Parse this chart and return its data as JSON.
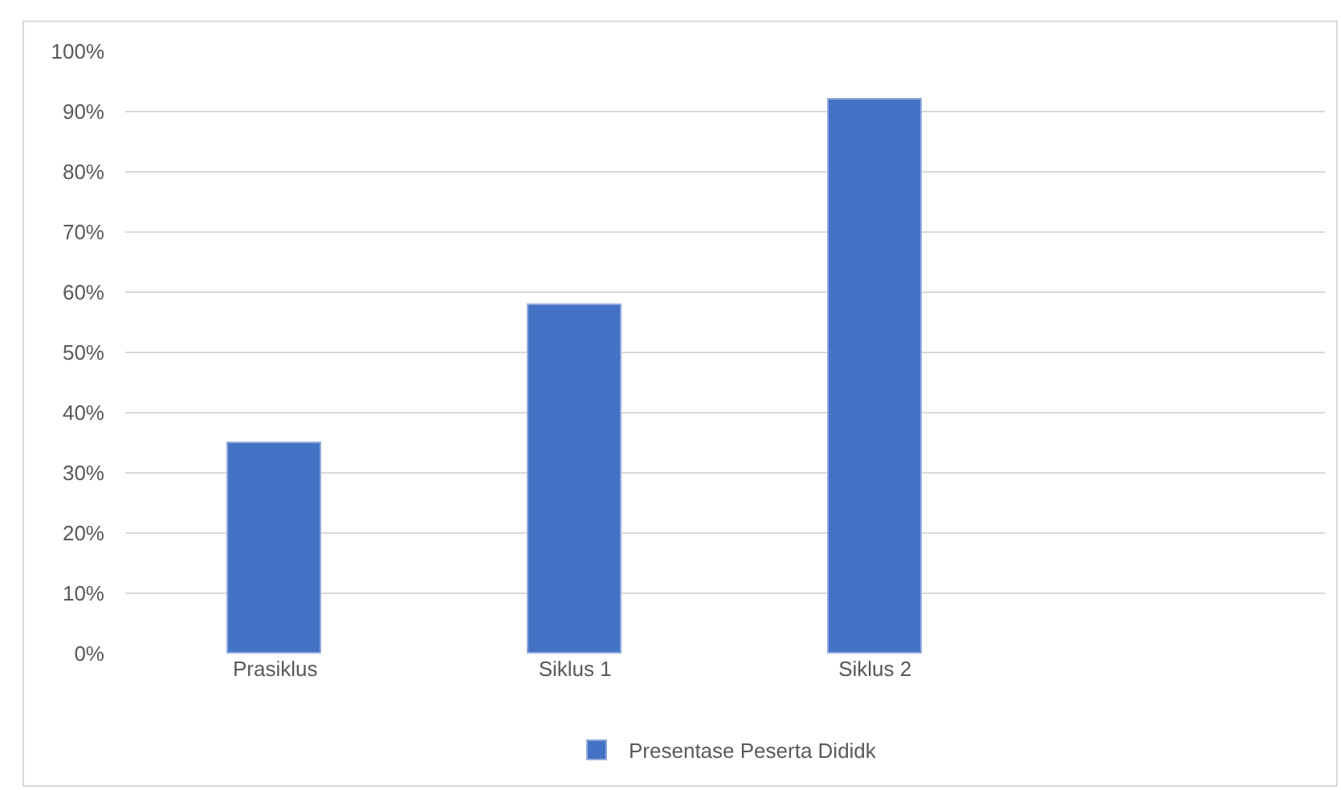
{
  "chart_data": {
    "type": "bar",
    "categories": [
      "Prasiklus",
      "Siklus 1",
      "Siklus 2",
      null
    ],
    "series": [
      {
        "name": "Presentase Peserta Dididk",
        "color": "#4472c4",
        "values": [
          35,
          58,
          92,
          null
        ]
      }
    ],
    "ylim": [
      0,
      100
    ],
    "yticks": [
      {
        "value": 0,
        "label": "0%"
      },
      {
        "value": 10,
        "label": "10%"
      },
      {
        "value": 20,
        "label": "20%"
      },
      {
        "value": 30,
        "label": "30%"
      },
      {
        "value": 40,
        "label": "40%"
      },
      {
        "value": 50,
        "label": "50%"
      },
      {
        "value": 60,
        "label": "60%"
      },
      {
        "value": 70,
        "label": "70%"
      },
      {
        "value": 80,
        "label": "80%"
      },
      {
        "value": 90,
        "label": "90%"
      },
      {
        "value": 100,
        "label": "100%"
      }
    ],
    "grid": "y",
    "legend": "bottom"
  }
}
